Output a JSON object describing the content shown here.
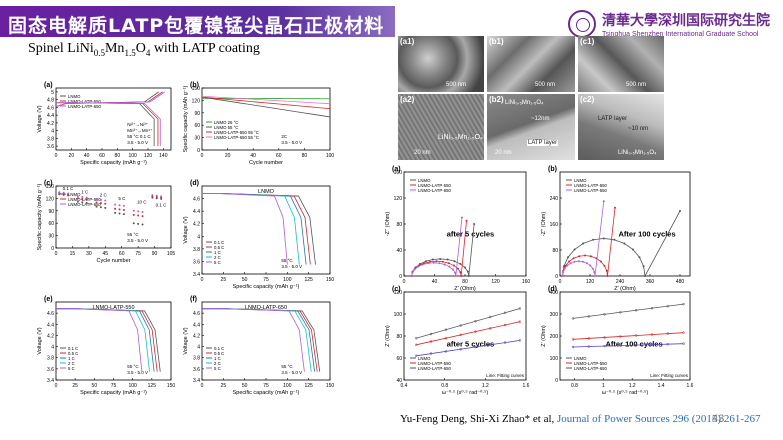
{
  "slide": {
    "title": "固态电解质LATP包覆镍锰尖晶石正极材料",
    "subtitle_pre": "Spinel LiNi",
    "subtitle_sub1": "0.5",
    "subtitle_mid": "Mn",
    "subtitle_sub2": "1.5",
    "subtitle_post": "O",
    "subtitle_sub3": "4",
    "subtitle_end": " with LATP coating",
    "logo_cn": "清華大學深圳国际研究生院",
    "logo_en": "Tsinghua Shenzhen International Graduate School",
    "citation_authors": "Yu-Feng Deng, Shi-Xi Zhao* et al, ",
    "citation_journal": "Journal of Power Sources 296 (2015) 261-267",
    "page_number": "43"
  },
  "sem": {
    "panels": [
      "(a1)",
      "(b1)",
      "(c1)",
      "(a2)",
      "(b2)",
      "(c2)"
    ],
    "scale_top": "500 nm",
    "scale_bottom": "20 nm",
    "a2_label": "LiNi₀.₅Mn₁.₅O₄",
    "b2_label": "LiNi₀.₅Mn₁.₅O₄",
    "b2_thickness": "~12nm",
    "b2_layer": "LATP layer",
    "c2_layer": "LATP layer",
    "c2_thickness": "~10 nm",
    "c2_label": "LiNi₀.₅Mn₁.₅O₄"
  },
  "chart_data": [
    {
      "panel": "(a)",
      "type": "line",
      "ylabel": "Voltage (V)",
      "xlabel": "Specific capacity (mAh g⁻¹)",
      "xlim": [
        0,
        150
      ],
      "ylim": [
        3.5,
        5.1
      ],
      "xticks": [
        0,
        20,
        40,
        60,
        80,
        100,
        120,
        140
      ],
      "yticks": [
        3.6,
        3.8,
        4.0,
        4.2,
        4.4,
        4.6,
        4.8,
        5.0
      ],
      "annotations": [
        "Ni²⁺→Ni³⁺",
        "Mn³⁺→Mn⁴⁺",
        "55 °C  0.1 C",
        "3.5 - 5.0 V"
      ],
      "series": [
        {
          "name": "LNMO",
          "color": "#555555",
          "end": 128
        },
        {
          "name": "LNMO-LATP-550",
          "color": "#d62728",
          "end": 133
        },
        {
          "name": "LNMO-LATP-650",
          "color": "#b05fd0",
          "end": 136
        }
      ]
    },
    {
      "panel": "(b)",
      "type": "line",
      "ylabel": "Specific capacity (mAh g⁻¹)",
      "xlabel": "Cycle number",
      "xlim": [
        0,
        100
      ],
      "ylim": [
        0,
        150
      ],
      "xticks": [
        0,
        20,
        40,
        60,
        80,
        100
      ],
      "yticks": [
        0,
        30,
        60,
        90,
        120,
        150
      ],
      "annotations": [
        "2C",
        "3.5 - 5.0 V"
      ],
      "series": [
        {
          "name": "LNMO  25 °C",
          "color": "#2ca02c",
          "start": 125,
          "end": 124
        },
        {
          "name": "LNMO  55 °C",
          "color": "#555555",
          "start": 128,
          "end": 80
        },
        {
          "name": "LNMO-LATP-550  55 °C",
          "color": "#d62728",
          "start": 128,
          "end": 100
        },
        {
          "name": "LNMO-LATP-650  55 °C",
          "color": "#e377c2",
          "start": 130,
          "end": 112
        }
      ]
    },
    {
      "panel": "(c)",
      "type": "scatter",
      "ylabel": "Specific capacity (mAh g⁻¹)",
      "xlabel": "Cycle number",
      "xlim": [
        0,
        105
      ],
      "ylim": [
        0,
        150
      ],
      "xticks": [
        0,
        15,
        30,
        45,
        60,
        75,
        90,
        105
      ],
      "yticks": [
        0,
        30,
        60,
        90,
        120,
        150
      ],
      "rate_labels": [
        "0.1 C",
        "1 C",
        "2 C",
        "5 C",
        "10 C",
        "0.1 C"
      ],
      "annotations": [
        "55 °C",
        "3.5 - 5.0 V"
      ],
      "series": [
        {
          "name": "LNMO",
          "color": "#555555",
          "values": [
            130,
            112,
            100,
            85,
            60,
            122
          ]
        },
        {
          "name": "LNMO-LATP-550",
          "color": "#d62728",
          "values": [
            133,
            120,
            110,
            95,
            80,
            125
          ]
        },
        {
          "name": "LNMO-LATP-650",
          "color": "#b05fd0",
          "values": [
            135,
            125,
            118,
            105,
            90,
            128
          ]
        }
      ]
    },
    {
      "panel": "(d)",
      "type": "line",
      "title": "LNMO",
      "ylabel": "Voltage (V)",
      "xlabel": "Specific capacity (mAh g⁻¹)",
      "xlim": [
        0,
        150
      ],
      "ylim": [
        3.4,
        4.8
      ],
      "xticks": [
        0,
        25,
        50,
        75,
        100,
        125,
        150
      ],
      "yticks": [
        3.4,
        3.6,
        3.8,
        4.0,
        4.2,
        4.4,
        4.6
      ],
      "annotations": [
        "55 °C",
        "3.5 - 5.0 V"
      ],
      "series": [
        {
          "name": "0.1 C",
          "color": "#555555",
          "end": 133
        },
        {
          "name": "0.5 C",
          "color": "#d62728",
          "end": 127
        },
        {
          "name": "1 C",
          "color": "#1f77b4",
          "end": 122
        },
        {
          "name": "2 C",
          "color": "#17becf",
          "end": 114
        },
        {
          "name": "5 C",
          "color": "#b05fd0",
          "end": 100
        }
      ]
    },
    {
      "panel": "(e)",
      "type": "line",
      "title": "LNMO-LATP-550",
      "ylabel": "Voltage (V)",
      "xlabel": "Specific capacity (mAh g⁻¹)",
      "xlim": [
        0,
        150
      ],
      "ylim": [
        3.4,
        4.8
      ],
      "xticks": [
        0,
        25,
        50,
        75,
        100,
        125,
        150
      ],
      "yticks": [
        3.4,
        3.6,
        3.8,
        4.0,
        4.2,
        4.4,
        4.6
      ],
      "annotations": [
        "55 °C",
        "3.5 - 5.0 V"
      ],
      "series": [
        {
          "name": "0.1 C",
          "color": "#555555",
          "end": 136
        },
        {
          "name": "0.5 C",
          "color": "#d62728",
          "end": 132
        },
        {
          "name": "1 C",
          "color": "#1f77b4",
          "end": 128
        },
        {
          "name": "2 C",
          "color": "#17becf",
          "end": 122
        },
        {
          "name": "5 C",
          "color": "#b05fd0",
          "end": 112
        }
      ]
    },
    {
      "panel": "(f)",
      "type": "line",
      "title": "LNMO-LATP-650",
      "ylabel": "Voltage (V)",
      "xlabel": "Specific capacity (mAh g⁻¹)",
      "xlim": [
        0,
        150
      ],
      "ylim": [
        3.4,
        4.8
      ],
      "xticks": [
        0,
        25,
        50,
        75,
        100,
        125,
        150
      ],
      "yticks": [
        3.4,
        3.6,
        3.8,
        4.0,
        4.2,
        4.4,
        4.6
      ],
      "annotations": [
        "55 °C",
        "3.5 - 5.0 V"
      ],
      "series": [
        {
          "name": "0.1 C",
          "color": "#555555",
          "end": 138
        },
        {
          "name": "0.5 C",
          "color": "#d62728",
          "end": 135
        },
        {
          "name": "1 C",
          "color": "#1f77b4",
          "end": 132
        },
        {
          "name": "2 C",
          "color": "#17becf",
          "end": 128
        },
        {
          "name": "5 C",
          "color": "#b05fd0",
          "end": 120
        }
      ]
    },
    {
      "panel": "(a)",
      "type": "scatter",
      "annotation": "after 5 cycles",
      "ylabel": "-Z'' (Ohm)",
      "xlabel": "Z' (Ohm)",
      "xlim": [
        0,
        160
      ],
      "ylim": [
        0,
        160
      ],
      "xticks": [
        0,
        40,
        80,
        120,
        160
      ],
      "yticks": [
        0,
        40,
        80,
        120,
        160
      ],
      "series": [
        {
          "name": "LNMO",
          "color": "#555555",
          "semicircle": 75,
          "tail_to": [
            92,
            80
          ]
        },
        {
          "name": "LNMO-LATP-550",
          "color": "#d62728",
          "semicircle": 65,
          "tail_to": [
            82,
            85
          ]
        },
        {
          "name": "LNMO-LATP-650",
          "color": "#b05fd0",
          "semicircle": 58,
          "tail_to": [
            76,
            90
          ]
        }
      ]
    },
    {
      "panel": "(b)",
      "type": "scatter",
      "annotation": "After 100 cycles",
      "ylabel": "-Z'' (Ohm)",
      "xlabel": "Z' (Ohm)",
      "xlim": [
        0,
        520
      ],
      "ylim": [
        0,
        320
      ],
      "xticks": [
        0,
        120,
        240,
        360,
        480
      ],
      "yticks": [
        0,
        80,
        160,
        240
      ],
      "series": [
        {
          "name": "LNMO",
          "color": "#555555",
          "semicircle": 330,
          "tail_to": [
            480,
            200
          ]
        },
        {
          "name": "LNMO-LATP-550",
          "color": "#d62728",
          "semicircle": 180,
          "tail_to": [
            220,
            210
          ]
        },
        {
          "name": "LNMO-LATP-650",
          "color": "#b05fd0",
          "semicircle": 130,
          "tail_to": [
            175,
            230
          ]
        }
      ]
    },
    {
      "panel": "(c)",
      "type": "scatter",
      "annotation": "after 5 cycles",
      "fit_label": "Line: Fitting curves",
      "ylabel": "Z' (Ohm)",
      "xlabel": "ω⁻⁰·⁵ (s⁰·⁵ rad⁻⁰·⁵)",
      "xlim": [
        0.4,
        1.6
      ],
      "ylim": [
        40,
        120
      ],
      "xticks": [
        0.4,
        0.8,
        1.2,
        1.6
      ],
      "yticks": [
        40,
        60,
        80,
        100,
        120
      ],
      "series": [
        {
          "name": "LNMO",
          "color": "#555555",
          "y_start": 78,
          "y_end": 105
        },
        {
          "name": "LNMO-LATP-550",
          "color": "#d62728",
          "y_start": 72,
          "y_end": 93
        },
        {
          "name": "LNMO-LATP-650",
          "color": "#5a3fc0",
          "y_start": 62,
          "y_end": 76
        }
      ]
    },
    {
      "panel": "(d)",
      "type": "scatter",
      "annotation": "After 100 cycles",
      "fit_label": "Line: Fitting curves",
      "ylabel": "Z' (Ohm)",
      "xlabel": "ω⁻⁰·⁵ (s⁰·⁵ rad⁻⁰·⁵)",
      "xlim": [
        0.7,
        1.6
      ],
      "ylim": [
        0,
        400
      ],
      "xticks": [
        0.8,
        1.0,
        1.2,
        1.4,
        1.6
      ],
      "yticks": [
        0,
        100,
        200,
        300,
        400
      ],
      "series": [
        {
          "name": "LNMO",
          "color": "#555555",
          "y_start": 280,
          "y_end": 345
        },
        {
          "name": "LNMO-LATP-550",
          "color": "#d62728",
          "y_start": 185,
          "y_end": 215
        },
        {
          "name": "LNMO-LATP-650",
          "color": "#5a3fc0",
          "y_start": 150,
          "y_end": 165
        }
      ]
    }
  ]
}
